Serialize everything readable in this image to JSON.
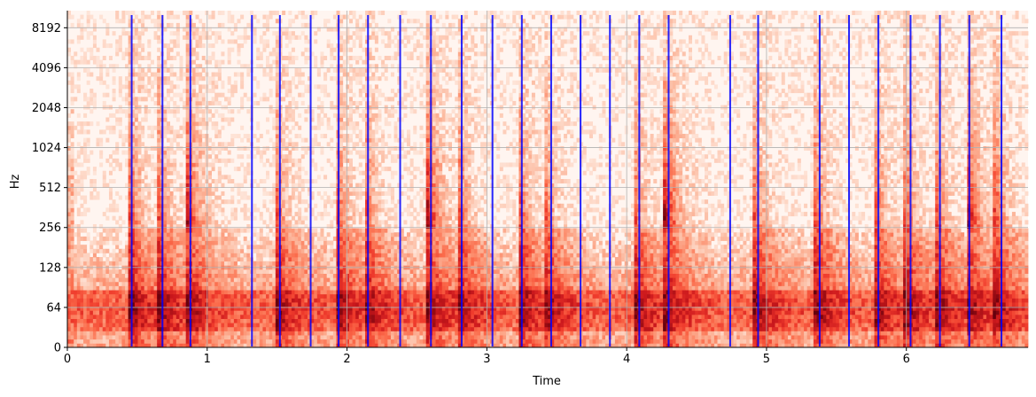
{
  "chart_data": {
    "type": "heatmap",
    "subtype": "spectrogram-with-beat-markers",
    "title": "",
    "xlabel": "Time",
    "ylabel": "Hz",
    "xlim": [
      0,
      6.87
    ],
    "ylim": [
      0,
      11025
    ],
    "y_scale": "symlog",
    "y_linthresh": 64,
    "x_ticks": [
      0,
      1,
      2,
      3,
      4,
      5,
      6
    ],
    "x_tick_labels": [
      "0",
      "1",
      "2",
      "3",
      "4",
      "5",
      "6"
    ],
    "y_ticks": [
      0,
      64,
      128,
      256,
      512,
      1024,
      2048,
      4096,
      8192
    ],
    "y_tick_labels": [
      "0",
      "64",
      "128",
      "256",
      "512",
      "1024",
      "2048",
      "4096",
      "8192"
    ],
    "grid": true,
    "colormap": "Reds",
    "beat_color": "#0000ff",
    "beat_times": [
      0.46,
      0.68,
      0.88,
      1.32,
      1.52,
      1.74,
      1.94,
      2.15,
      2.38,
      2.6,
      2.82,
      3.04,
      3.25,
      3.46,
      3.67,
      3.88,
      4.09,
      4.3,
      4.74,
      4.94,
      5.38,
      5.59,
      5.8,
      6.03,
      6.24,
      6.45,
      6.68
    ],
    "onset_times": [
      0.46,
      0.66,
      0.86,
      1.5,
      1.94,
      2.14,
      2.58,
      2.8,
      3.24,
      3.42,
      4.06,
      4.28,
      4.92,
      5.36,
      5.78,
      6.0,
      6.22,
      6.44,
      6.64
    ],
    "strong_onsets": [
      0.86,
      2.58,
      4.28,
      6.44
    ]
  }
}
